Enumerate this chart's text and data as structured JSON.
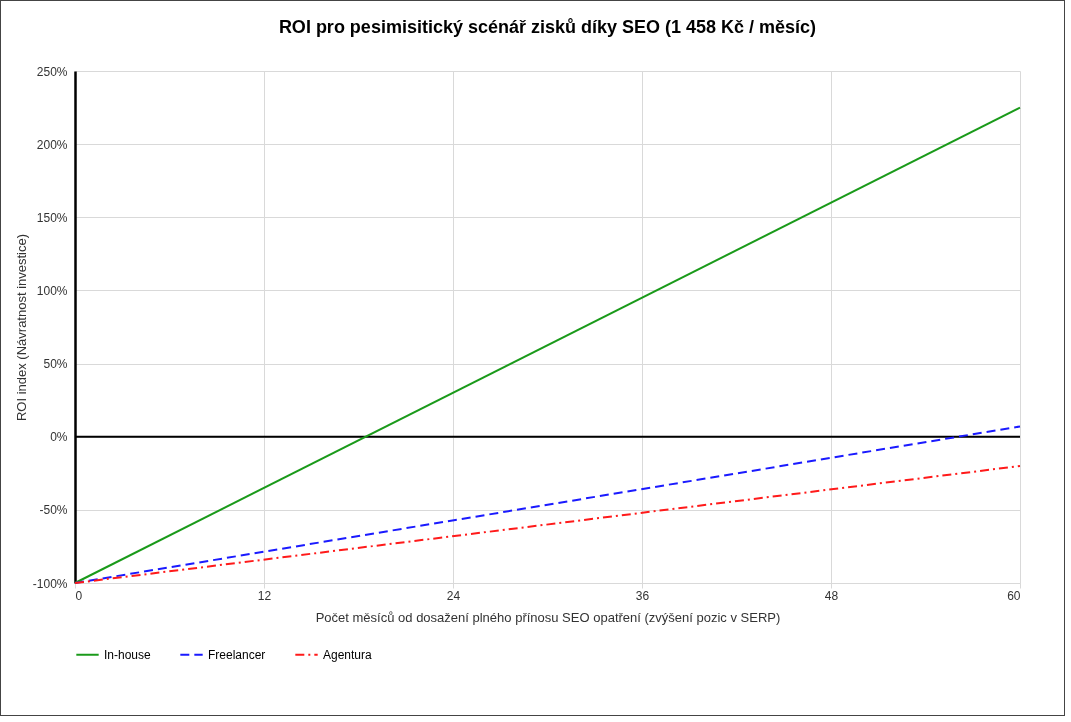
{
  "chart_data": {
    "type": "line",
    "title": "ROI pro pesimisitický scénář zisků díky SEO (1 458 Kč / měsíc)",
    "xlabel": "Počet měsíců od dosažení plného přínosu SEO opatření (zvýšení pozic v SERP)",
    "ylabel": "ROI index (Návratnost investice)",
    "x": [
      0,
      60
    ],
    "series": [
      {
        "name": "In-house",
        "color": "#1a9a1a",
        "values": [
          -100,
          225
        ],
        "line_style": "solid"
      },
      {
        "name": "Freelancer",
        "color": "#1a1aff",
        "values": [
          -100,
          7
        ],
        "line_style": "dashed"
      },
      {
        "name": "Agentura",
        "color": "#ff1a1a",
        "values": [
          -100,
          -20
        ],
        "line_style": "dashdot"
      }
    ],
    "xlim": [
      0,
      60
    ],
    "xticks": [
      0,
      12,
      24,
      36,
      48,
      60
    ],
    "ylim": [
      -100,
      250
    ],
    "yticks": [
      {
        "value": -100,
        "label": "-100%"
      },
      {
        "value": -50,
        "label": "-50%"
      },
      {
        "value": 0,
        "label": "0%"
      },
      {
        "value": 50,
        "label": "50%"
      },
      {
        "value": 100,
        "label": "100%"
      },
      {
        "value": 150,
        "label": "150%"
      },
      {
        "value": 200,
        "label": "200%"
      },
      {
        "value": 250,
        "label": "250%"
      }
    ],
    "ref_lines": [
      {
        "axis": "y",
        "value": 0,
        "color": "#000000"
      }
    ],
    "grid": true,
    "legend": "bottom",
    "marker": "none"
  }
}
